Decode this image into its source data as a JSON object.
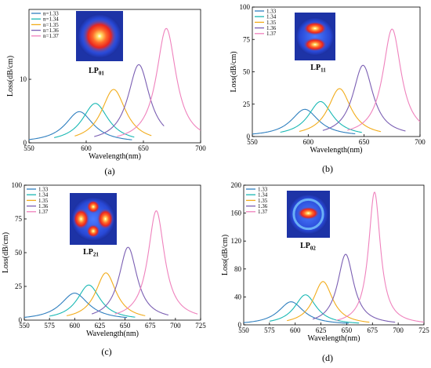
{
  "chart_data": [
    {
      "type": "line",
      "panel_label": "(a)",
      "mode": {
        "main": "LP",
        "sub": "01",
        "pattern": "single-lobe"
      },
      "xlabel": "Wavelength(nm)",
      "ylabel": "Loss(dB/cm)",
      "xlim": [
        550,
        700
      ],
      "ylim": [
        0,
        21
      ],
      "xticks": [
        550,
        600,
        650,
        700
      ],
      "yticks": [
        0,
        10
      ],
      "legend_position": "top-left",
      "series": [
        {
          "name": "n=1.33",
          "color": "#2f7fbf",
          "peak_x": 594,
          "peak_y": 4.9,
          "width": 15,
          "range": [
            550,
            640
          ]
        },
        {
          "name": "n=1.34",
          "color": "#19b8b4",
          "peak_x": 608,
          "peak_y": 6.2,
          "width": 14,
          "range": [
            572,
            642
          ]
        },
        {
          "name": "n=1.35",
          "color": "#f2ac1b",
          "peak_x": 624,
          "peak_y": 8.4,
          "width": 13,
          "range": [
            590,
            657
          ]
        },
        {
          "name": "n=1.36",
          "color": "#7b5fb3",
          "peak_x": 646,
          "peak_y": 12.3,
          "width": 11.5,
          "range": [
            607,
            668
          ]
        },
        {
          "name": "n=1.37",
          "color": "#ef82bd",
          "peak_x": 670,
          "peak_y": 18,
          "width": 10.5,
          "range": [
            627,
            700
          ]
        }
      ]
    },
    {
      "type": "line",
      "panel_label": "(b)",
      "mode": {
        "main": "LP",
        "sub": "11",
        "pattern": "two-lobe"
      },
      "xlabel": "Wavelength(nm)",
      "ylabel": "Loss(dB/cm)",
      "xlim": [
        550,
        700
      ],
      "ylim": [
        0,
        100
      ],
      "xticks": [
        550,
        600,
        650,
        700
      ],
      "yticks": [
        0,
        25,
        50,
        75,
        100
      ],
      "legend_position": "top-left",
      "series": [
        {
          "name": "1.33",
          "color": "#2f7fbf",
          "peak_x": 597,
          "peak_y": 21,
          "width": 15,
          "range": [
            550,
            642
          ]
        },
        {
          "name": "1.34",
          "color": "#19b8b4",
          "peak_x": 611,
          "peak_y": 27,
          "width": 13.5,
          "range": [
            575,
            648
          ]
        },
        {
          "name": "1.35",
          "color": "#f2ac1b",
          "peak_x": 628,
          "peak_y": 37,
          "width": 12.5,
          "range": [
            592,
            665
          ]
        },
        {
          "name": "1.36",
          "color": "#7b5fb3",
          "peak_x": 649,
          "peak_y": 55,
          "width": 11,
          "range": [
            613,
            687
          ]
        },
        {
          "name": "1.37",
          "color": "#ef82bd",
          "peak_x": 675,
          "peak_y": 83,
          "width": 10,
          "range": [
            635,
            700
          ]
        }
      ]
    },
    {
      "type": "line",
      "panel_label": "(c)",
      "mode": {
        "main": "LP",
        "sub": "21",
        "pattern": "four-lobe"
      },
      "xlabel": "Wavelength(nm)",
      "ylabel": "Loss(dB/cm)",
      "xlim": [
        550,
        725
      ],
      "ylim": [
        0,
        100
      ],
      "xticks": [
        550,
        575,
        600,
        625,
        650,
        675,
        700,
        725
      ],
      "yticks": [
        0,
        25,
        50,
        75,
        100
      ],
      "legend_position": "top-left",
      "series": [
        {
          "name": "1.33",
          "color": "#2f7fbf",
          "peak_x": 600,
          "peak_y": 20,
          "width": 17,
          "range": [
            550,
            652
          ]
        },
        {
          "name": "1.34",
          "color": "#19b8b4",
          "peak_x": 614,
          "peak_y": 26,
          "width": 14,
          "range": [
            575,
            660
          ]
        },
        {
          "name": "1.35",
          "color": "#f2ac1b",
          "peak_x": 631,
          "peak_y": 35,
          "width": 12.5,
          "range": [
            592,
            670
          ]
        },
        {
          "name": "1.36",
          "color": "#7b5fb3",
          "peak_x": 653,
          "peak_y": 54,
          "width": 11,
          "range": [
            617,
            693
          ]
        },
        {
          "name": "1.37",
          "color": "#ef82bd",
          "peak_x": 681,
          "peak_y": 81,
          "width": 10,
          "range": [
            640,
            722
          ]
        }
      ]
    },
    {
      "type": "line",
      "panel_label": "(d)",
      "mode": {
        "main": "LP",
        "sub": "02",
        "pattern": "ring"
      },
      "xlabel": "Wavelength(nm)",
      "ylabel": "Loss(dB/cm)",
      "xlim": [
        550,
        725
      ],
      "ylim": [
        0,
        200
      ],
      "xticks": [
        550,
        575,
        600,
        625,
        650,
        675,
        700,
        725
      ],
      "yticks": [
        0,
        40,
        80,
        120,
        160,
        200
      ],
      "legend_position": "top-left",
      "series": [
        {
          "name": "1.33",
          "color": "#2f7fbf",
          "peak_x": 596,
          "peak_y": 33,
          "width": 15,
          "range": [
            550,
            652
          ]
        },
        {
          "name": "1.34",
          "color": "#19b8b4",
          "peak_x": 610,
          "peak_y": 43,
          "width": 13,
          "range": [
            575,
            662
          ]
        },
        {
          "name": "1.35",
          "color": "#f2ac1b",
          "peak_x": 627,
          "peak_y": 62,
          "width": 11.5,
          "range": [
            592,
            672
          ]
        },
        {
          "name": "1.36",
          "color": "#7b5fb3",
          "peak_x": 649,
          "peak_y": 101,
          "width": 9.5,
          "range": [
            617,
            697
          ]
        },
        {
          "name": "1.37",
          "color": "#ef82bd",
          "peak_x": 677,
          "peak_y": 190,
          "width": 7,
          "range": [
            640,
            725
          ]
        }
      ]
    }
  ]
}
